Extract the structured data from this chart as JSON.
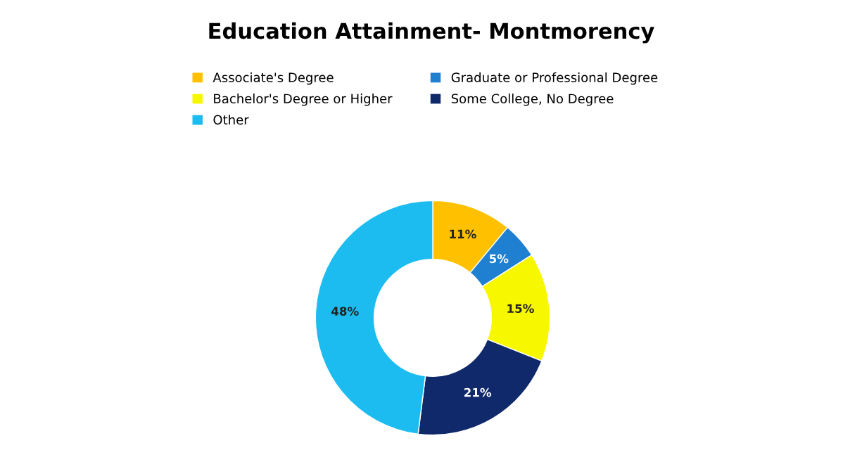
{
  "chart_data": {
    "type": "donut",
    "title": "Education Attainment- Montmorency",
    "categories": [
      "Associate's Degree",
      "Graduate or Professional Degree",
      "Bachelor's Degree or Higher",
      "Some College, No Degree",
      "Other"
    ],
    "values": [
      11,
      5,
      15,
      21,
      48
    ],
    "colors": [
      "#ffc000",
      "#1f7fd0",
      "#f7f700",
      "#10296b",
      "#1cbcf0"
    ],
    "value_labels": [
      "11%",
      "5%",
      "15%",
      "21%",
      "48%"
    ],
    "legend": "top left"
  }
}
